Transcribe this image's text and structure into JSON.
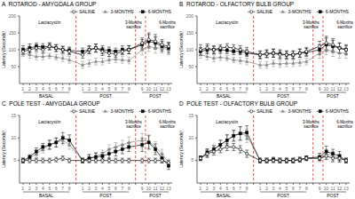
{
  "chart_data": [
    {
      "type": "line",
      "title": "A  ROTAROD - AMYGDALA GROUP",
      "ylabel": "Latency (Seconds)",
      "categories": [
        "1",
        "2",
        "3",
        "4",
        "5",
        "6",
        "7",
        "8",
        null,
        "1",
        "2",
        "3",
        "4",
        "5",
        "6",
        "7",
        "8",
        null,
        "9",
        "10",
        "11",
        "12",
        "13"
      ],
      "groups": [
        "BASAL",
        "POST",
        "POST"
      ],
      "annotations": [
        "Lactacystin",
        "3-Months\nsacrifice",
        "6-Months\nsacrifice"
      ],
      "ylim": [
        0,
        200
      ],
      "yticks": [
        50,
        100,
        150,
        200
      ],
      "legend": "upper right",
      "reference_lines": {
        "color": "#ff0000",
        "line_style": "dashed"
      },
      "series": [
        {
          "name": "SALINE",
          "color": "#000000",
          "marker": "circle-open",
          "values": [
            95,
            100,
            105,
            100,
            110,
            105,
            100,
            95,
            null,
            85,
            100,
            105,
            95,
            90,
            88,
            95,
            100,
            null,
            120,
            130,
            125,
            115,
            110
          ],
          "errors": [
            10,
            10,
            10,
            10,
            10,
            10,
            10,
            10,
            null,
            10,
            12,
            12,
            12,
            10,
            10,
            10,
            12,
            null,
            15,
            20,
            20,
            15,
            12
          ]
        },
        {
          "name": "3-MONTHS",
          "color": "#888888",
          "marker": "triangle",
          "values": [
            90,
            85,
            80,
            80,
            82,
            78,
            75,
            70,
            null,
            55,
            60,
            65,
            65,
            70,
            72,
            70,
            68,
            null,
            100,
            110,
            105,
            105,
            100
          ],
          "errors": [
            10,
            10,
            10,
            10,
            8,
            8,
            10,
            10,
            null,
            10,
            10,
            10,
            10,
            10,
            10,
            10,
            10,
            null,
            15,
            15,
            15,
            15,
            15
          ]
        },
        {
          "name": "6-MONTHS",
          "color": "#000000",
          "marker": "square",
          "values": [
            100,
            105,
            110,
            108,
            110,
            105,
            100,
            98,
            null,
            95,
            100,
            105,
            100,
            98,
            95,
            100,
            100,
            null,
            115,
            125,
            120,
            110,
            105
          ],
          "errors": [
            12,
            12,
            10,
            10,
            10,
            10,
            10,
            10,
            null,
            10,
            10,
            12,
            12,
            10,
            10,
            12,
            12,
            null,
            15,
            20,
            18,
            15,
            15
          ]
        }
      ]
    },
    {
      "type": "line",
      "title": "B  ROTAROD - OLFACTORY BULB GROUP",
      "ylabel": "Latency (Seconds)",
      "categories": [
        "1",
        "2",
        "3",
        "4",
        "5",
        "6",
        "7",
        "8",
        null,
        "1",
        "2",
        "3",
        "4",
        "5",
        "6",
        "7",
        "8",
        null,
        "9",
        "10",
        "11",
        "12",
        "13"
      ],
      "groups": [
        "BASAL",
        "POST",
        "POST"
      ],
      "annotations": [
        "Lactacystin",
        "3-Months\nsacrifice",
        "6-Months\nsacrifice"
      ],
      "ylim": [
        0,
        200
      ],
      "yticks": [
        50,
        100,
        150,
        200
      ],
      "legend": "upper right",
      "reference_lines": {
        "color": "#ff0000",
        "line_style": "dashed"
      },
      "series": [
        {
          "name": "SALINE",
          "color": "#000000",
          "marker": "circle-open",
          "values": [
            100,
            105,
            100,
            105,
            108,
            105,
            100,
            95,
            null,
            85,
            88,
            90,
            85,
            85,
            85,
            90,
            95,
            null,
            110,
            120,
            115,
            105,
            100
          ],
          "errors": [
            15,
            12,
            12,
            10,
            10,
            10,
            12,
            12,
            null,
            12,
            12,
            12,
            12,
            12,
            12,
            12,
            12,
            null,
            15,
            20,
            18,
            15,
            12
          ]
        },
        {
          "name": "3-MONTHS",
          "color": "#888888",
          "marker": "triangle",
          "values": [
            85,
            80,
            75,
            78,
            75,
            70,
            68,
            65,
            null,
            55,
            55,
            60,
            58,
            60,
            60,
            62,
            65,
            null,
            90,
            100,
            95,
            90,
            90
          ],
          "errors": [
            10,
            10,
            10,
            10,
            8,
            8,
            10,
            10,
            null,
            10,
            10,
            10,
            10,
            10,
            10,
            10,
            10,
            null,
            15,
            15,
            15,
            15,
            15
          ]
        },
        {
          "name": "6-MONTHS",
          "color": "#000000",
          "marker": "square",
          "values": [
            95,
            100,
            100,
            100,
            98,
            95,
            95,
            90,
            null,
            85,
            88,
            90,
            88,
            85,
            85,
            90,
            92,
            null,
            100,
            115,
            110,
            105,
            100
          ],
          "errors": [
            12,
            12,
            10,
            10,
            10,
            10,
            10,
            10,
            null,
            10,
            10,
            12,
            12,
            10,
            10,
            12,
            12,
            null,
            15,
            20,
            18,
            15,
            15
          ]
        }
      ]
    },
    {
      "type": "line",
      "title": "C  POLE TEST - AMYGDALA GROUP",
      "ylabel": "Latency (Seconds)",
      "categories": [
        "1",
        "2",
        "3",
        "4",
        "5",
        "6",
        "7",
        "8",
        null,
        "1",
        "2",
        "3",
        "4",
        "5",
        "6",
        "7",
        "8",
        null,
        "9",
        "10",
        "11",
        "12",
        "13"
      ],
      "groups": [
        "BASAL",
        "POST",
        "POST"
      ],
      "annotations": [
        "Lactacystin",
        "3-Months\nsacrifice",
        "6-Months\nsacrifice"
      ],
      "ylim": [
        0,
        15
      ],
      "yticks": [
        5,
        10,
        15
      ],
      "legend": "upper right",
      "reference_lines": {
        "color": "#ff0000",
        "line_style": "dashed"
      },
      "series": [
        {
          "name": "SALINE",
          "color": "#000000",
          "marker": "circle-open",
          "values": [
            5.0,
            5.0,
            5.0,
            5.0,
            5.0,
            5.2,
            5.5,
            5.0,
            null,
            5.0,
            5.0,
            5.0,
            5.0,
            5.0,
            5.0,
            5.0,
            5.0,
            null,
            5.0,
            5.0,
            5.0,
            5.0,
            4.5
          ],
          "errors": [
            0.5,
            0.5,
            0.5,
            0.5,
            0.5,
            0.5,
            0.5,
            0.5,
            null,
            0.5,
            0.5,
            0.5,
            0.5,
            0.5,
            0.5,
            0.5,
            0.5,
            null,
            0.5,
            0.5,
            0.5,
            0.5,
            0.5
          ]
        },
        {
          "name": "3-MONTHS",
          "color": "#888888",
          "marker": "triangle",
          "values": [
            5.0,
            5.5,
            6.5,
            7.5,
            8.5,
            9.0,
            9.5,
            8.5,
            null,
            5.0,
            5.5,
            6.0,
            6.5,
            7.5,
            8.0,
            8.5,
            9.0,
            null,
            9.5,
            9.2,
            8.0,
            6.5,
            4.5
          ],
          "errors": [
            0.5,
            0.5,
            0.8,
            0.8,
            1.0,
            1.0,
            1.0,
            1.0,
            null,
            0.5,
            0.8,
            0.8,
            0.8,
            1.0,
            1.0,
            1.0,
            1.2,
            null,
            1.5,
            1.5,
            1.2,
            1.0,
            0.8
          ]
        },
        {
          "name": "6-MONTHS",
          "color": "#000000",
          "marker": "square",
          "values": [
            5.0,
            5.8,
            7.0,
            8.0,
            8.5,
            9.0,
            10.0,
            9.5,
            null,
            5.0,
            5.5,
            5.8,
            6.0,
            6.5,
            7.0,
            7.5,
            8.0,
            null,
            8.5,
            9.0,
            7.5,
            5.5,
            3.8
          ],
          "errors": [
            0.5,
            0.5,
            0.8,
            0.8,
            1.0,
            1.0,
            1.2,
            1.2,
            null,
            0.5,
            0.8,
            0.8,
            0.8,
            1.0,
            1.0,
            1.0,
            1.0,
            null,
            1.5,
            1.5,
            1.2,
            1.0,
            0.8
          ]
        }
      ]
    },
    {
      "type": "line",
      "title": "D  POLE TEST - OLFACTORY BULB GROUP",
      "ylabel": "Latency (Seconds)",
      "categories": [
        "1",
        "2",
        "3",
        "4",
        "5",
        "6",
        "7",
        "8",
        null,
        "1",
        "2",
        "3",
        "4",
        "5",
        "6",
        "7",
        "8",
        null,
        "9",
        "10",
        "11",
        "12",
        "13"
      ],
      "groups": [
        "BASAL",
        "POST",
        "POST"
      ],
      "annotations": [
        "Lactacystin",
        "3-Months\nsacrifice",
        "6-Months\nsacrifice"
      ],
      "ylim": [
        0,
        15
      ],
      "yticks": [
        5,
        10,
        15
      ],
      "legend": "upper right",
      "reference_lines": {
        "color": "#ff0000",
        "line_style": "dashed"
      },
      "series": [
        {
          "name": "SALINE",
          "color": "#000000",
          "marker": "circle-open",
          "values": [
            5.5,
            6.5,
            7.0,
            7.5,
            8.0,
            8.0,
            7.5,
            6.5,
            null,
            5.0,
            5.0,
            5.0,
            5.0,
            5.0,
            5.0,
            5.2,
            5.5,
            null,
            5.5,
            6.0,
            5.5,
            5.5,
            5.0
          ],
          "errors": [
            0.5,
            0.8,
            0.8,
            0.8,
            0.8,
            0.8,
            0.8,
            0.8,
            null,
            0.5,
            0.5,
            0.5,
            0.5,
            0.5,
            0.5,
            0.5,
            0.5,
            null,
            0.5,
            0.8,
            0.8,
            0.8,
            0.5
          ]
        },
        {
          "name": "3-MONTHS",
          "color": "#888888",
          "marker": "triangle",
          "values": [
            5.5,
            6.5,
            7.5,
            8.5,
            9.5,
            10.5,
            11.0,
            10.5,
            null,
            5.0,
            5.0,
            5.2,
            5.0,
            5.0,
            5.0,
            5.2,
            5.5,
            null,
            5.5,
            6.5,
            6.0,
            5.5,
            5.0
          ],
          "errors": [
            0.5,
            0.8,
            0.8,
            1.0,
            1.2,
            1.2,
            1.5,
            1.5,
            null,
            0.5,
            0.5,
            0.5,
            0.5,
            0.5,
            0.5,
            0.5,
            0.5,
            null,
            0.8,
            1.0,
            1.0,
            0.8,
            0.5
          ]
        },
        {
          "name": "6-MONTHS",
          "color": "#000000",
          "marker": "square",
          "values": [
            5.5,
            6.8,
            7.5,
            8.5,
            9.5,
            10.5,
            11.0,
            11.2,
            null,
            5.0,
            5.0,
            5.2,
            5.0,
            5.0,
            5.0,
            5.2,
            5.5,
            null,
            5.8,
            7.0,
            6.5,
            6.0,
            5.0
          ],
          "errors": [
            0.5,
            0.8,
            0.8,
            1.0,
            1.2,
            1.2,
            1.5,
            1.5,
            null,
            0.5,
            0.5,
            0.5,
            0.5,
            0.5,
            0.5,
            0.5,
            0.5,
            null,
            0.8,
            1.2,
            1.0,
            1.0,
            0.5
          ]
        }
      ]
    }
  ]
}
